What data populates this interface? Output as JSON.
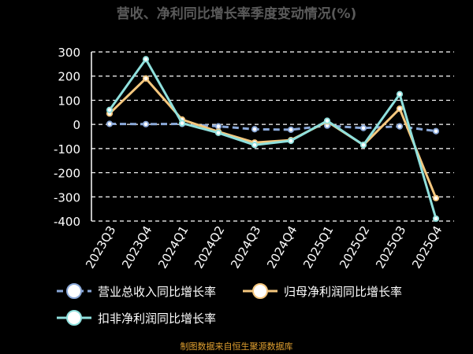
{
  "chart_data": {
    "type": "line",
    "title": "营收、净利同比增长率季度变动情况(%)",
    "categories": [
      "2023Q3",
      "2023Q4",
      "2024Q1",
      "2024Q2",
      "2024Q3",
      "2024Q4",
      "2025Q1",
      "2025Q2",
      "2025Q3",
      "2025Q4"
    ],
    "ylim": [
      -400,
      300
    ],
    "yticks": [
      300,
      200,
      100,
      0,
      -100,
      -200,
      -300,
      -400
    ],
    "grid": true,
    "legend_position": "bottom",
    "series": [
      {
        "name": "营业总收入同比增长率",
        "color": "#8aa8d8",
        "dashed": true,
        "values": [
          2,
          1,
          2,
          -8,
          -20,
          -22,
          -5,
          -15,
          -8,
          -28
        ]
      },
      {
        "name": "归母净利润同比增长率",
        "color": "#f5c77e",
        "dashed": false,
        "values": [
          45,
          190,
          20,
          -30,
          -75,
          -65,
          12,
          -85,
          65,
          -305
        ]
      },
      {
        "name": "扣非净利润同比增长率",
        "color": "#8fe0dd",
        "dashed": false,
        "values": [
          60,
          270,
          5,
          -35,
          -85,
          -68,
          15,
          -85,
          125,
          -390
        ]
      }
    ]
  },
  "source_text": "制图数据来自恒生聚源数据库"
}
